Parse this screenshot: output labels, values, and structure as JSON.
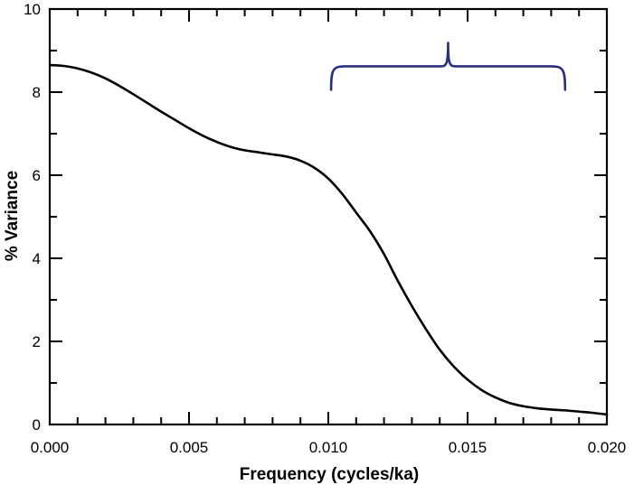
{
  "chart_data": {
    "type": "line",
    "title": "",
    "xlabel": "Frequency (cycles/ka)",
    "ylabel": "% Variance",
    "xlim": [
      0,
      0.02
    ],
    "ylim": [
      0,
      10
    ],
    "x_ticks": [
      0,
      0.005,
      0.01,
      0.015,
      0.02
    ],
    "x_tick_labels": [
      "0.000",
      "0.005",
      "0.010",
      "0.015",
      "0.020"
    ],
    "y_ticks": [
      0,
      2,
      4,
      6,
      8,
      10
    ],
    "y_tick_labels": [
      "0",
      "2",
      "4",
      "6",
      "8",
      "10"
    ],
    "x_minor_step": 0.001,
    "y_minor_step": 1,
    "grid": false,
    "line_color": "#000000",
    "series": [
      {
        "x": [
          0,
          0.0005,
          0.001,
          0.0015,
          0.002,
          0.0025,
          0.003,
          0.0035,
          0.004,
          0.0045,
          0.005,
          0.0055,
          0.006,
          0.0065,
          0.007,
          0.0075,
          0.008,
          0.0085,
          0.009,
          0.0095,
          0.01,
          0.0105,
          0.011,
          0.0115,
          0.012,
          0.0125,
          0.013,
          0.0135,
          0.014,
          0.0145,
          0.015,
          0.0155,
          0.016,
          0.0165,
          0.017,
          0.0175,
          0.018,
          0.0185,
          0.019,
          0.0195,
          0.02
        ],
        "values": [
          8.65,
          8.63,
          8.57,
          8.47,
          8.33,
          8.15,
          7.95,
          7.74,
          7.53,
          7.33,
          7.13,
          6.95,
          6.8,
          6.68,
          6.6,
          6.55,
          6.5,
          6.45,
          6.35,
          6.18,
          5.92,
          5.55,
          5.1,
          4.65,
          4.1,
          3.45,
          2.85,
          2.3,
          1.8,
          1.4,
          1.08,
          0.83,
          0.65,
          0.52,
          0.44,
          0.39,
          0.36,
          0.34,
          0.31,
          0.28,
          0.24
        ]
      }
    ],
    "annotations": [
      {
        "type": "brace",
        "x_start": 0.0101,
        "x_end": 0.0185,
        "x_mid": 0.0143,
        "y": 8.6,
        "color": "#2b2f7f"
      }
    ]
  }
}
